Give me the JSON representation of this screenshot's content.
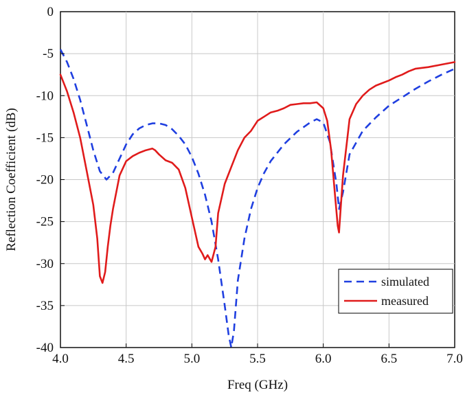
{
  "chart_data": {
    "type": "line",
    "title": "",
    "xlabel": "Freq (GHz)",
    "ylabel": "Reflection Coefficient (dB)",
    "xlim": [
      4.0,
      7.0
    ],
    "ylim": [
      -40,
      0
    ],
    "xticks": [
      4.0,
      4.5,
      5.0,
      5.5,
      6.0,
      6.5,
      7.0
    ],
    "xtick_labels": [
      "4.0",
      "4.5",
      "5.0",
      "5.5",
      "6.0",
      "6.5",
      "7.0"
    ],
    "yticks": [
      0,
      -5,
      -10,
      -15,
      -20,
      -25,
      -30,
      -35,
      -40
    ],
    "ytick_labels": [
      "0",
      "-5",
      "-10",
      "-15",
      "-20",
      "-25",
      "-30",
      "-35",
      "-40"
    ],
    "grid": true,
    "legend_position": "bottom-right",
    "series": [
      {
        "name": "simulated",
        "color": "#1f3fe0",
        "style": "dashed",
        "x": [
          4.0,
          4.05,
          4.1,
          4.15,
          4.2,
          4.25,
          4.3,
          4.35,
          4.4,
          4.45,
          4.5,
          4.55,
          4.6,
          4.65,
          4.7,
          4.75,
          4.8,
          4.85,
          4.9,
          4.95,
          5.0,
          5.05,
          5.1,
          5.15,
          5.2,
          5.25,
          5.28,
          5.3,
          5.32,
          5.35,
          5.4,
          5.45,
          5.5,
          5.55,
          5.6,
          5.7,
          5.8,
          5.9,
          5.95,
          6.0,
          6.05,
          6.1,
          6.12,
          6.15,
          6.2,
          6.3,
          6.4,
          6.5,
          6.6,
          6.7,
          6.8,
          6.9,
          7.0
        ],
        "y": [
          -4.5,
          -6.0,
          -8.0,
          -10.5,
          -13.5,
          -16.5,
          -19.0,
          -20.0,
          -19.2,
          -17.5,
          -15.8,
          -14.6,
          -13.9,
          -13.5,
          -13.3,
          -13.3,
          -13.5,
          -14.0,
          -14.8,
          -15.8,
          -17.3,
          -19.3,
          -21.8,
          -25.0,
          -29.5,
          -35.0,
          -38.5,
          -40.0,
          -38.0,
          -32.0,
          -27.0,
          -23.5,
          -21.0,
          -19.2,
          -17.8,
          -15.8,
          -14.3,
          -13.2,
          -12.8,
          -13.2,
          -15.5,
          -20.5,
          -23.5,
          -21.5,
          -17.0,
          -14.2,
          -12.6,
          -11.2,
          -10.2,
          -9.2,
          -8.3,
          -7.5,
          -6.8
        ]
      },
      {
        "name": "measured",
        "color": "#e01b1b",
        "style": "solid",
        "x": [
          4.0,
          4.05,
          4.1,
          4.15,
          4.2,
          4.25,
          4.28,
          4.3,
          4.32,
          4.34,
          4.36,
          4.38,
          4.4,
          4.45,
          4.5,
          4.55,
          4.6,
          4.65,
          4.7,
          4.72,
          4.75,
          4.8,
          4.85,
          4.9,
          4.95,
          5.0,
          5.05,
          5.08,
          5.1,
          5.12,
          5.15,
          5.18,
          5.2,
          5.25,
          5.3,
          5.35,
          5.4,
          5.45,
          5.5,
          5.55,
          5.6,
          5.65,
          5.7,
          5.75,
          5.8,
          5.85,
          5.9,
          5.95,
          6.0,
          6.03,
          6.06,
          6.09,
          6.11,
          6.12,
          6.13,
          6.15,
          6.18,
          6.2,
          6.25,
          6.3,
          6.35,
          6.4,
          6.45,
          6.5,
          6.55,
          6.6,
          6.65,
          6.7,
          6.8,
          6.9,
          7.0
        ],
        "y": [
          -7.5,
          -9.5,
          -12.0,
          -15.0,
          -19.0,
          -23.0,
          -27.0,
          -31.5,
          -32.3,
          -31.0,
          -28.0,
          -25.5,
          -23.5,
          -19.5,
          -17.8,
          -17.2,
          -16.8,
          -16.5,
          -16.3,
          -16.5,
          -17.0,
          -17.7,
          -18.0,
          -18.8,
          -21.0,
          -24.5,
          -28.0,
          -28.8,
          -29.5,
          -29.0,
          -29.8,
          -28.0,
          -24.0,
          -20.5,
          -18.5,
          -16.5,
          -15.0,
          -14.2,
          -13.0,
          -12.5,
          -12.0,
          -11.8,
          -11.5,
          -11.1,
          -11.0,
          -10.9,
          -10.9,
          -10.8,
          -11.5,
          -13.0,
          -16.5,
          -22.0,
          -25.5,
          -26.3,
          -24.0,
          -19.5,
          -15.5,
          -12.8,
          -11.0,
          -10.0,
          -9.3,
          -8.8,
          -8.5,
          -8.2,
          -7.8,
          -7.5,
          -7.1,
          -6.8,
          -6.6,
          -6.3,
          -6.0
        ]
      }
    ]
  }
}
